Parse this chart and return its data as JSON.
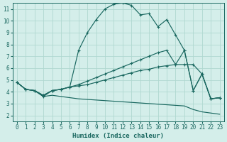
{
  "xlabel": "Humidex (Indice chaleur)",
  "bg_color": "#d4eeea",
  "grid_color": "#b0d8d0",
  "line_color": "#1a6860",
  "xlim": [
    -0.5,
    23.5
  ],
  "ylim": [
    1.5,
    11.5
  ],
  "xticks": [
    0,
    1,
    2,
    3,
    4,
    5,
    6,
    7,
    8,
    9,
    10,
    11,
    12,
    13,
    14,
    15,
    16,
    17,
    18,
    19,
    20,
    21,
    22,
    23
  ],
  "yticks": [
    2,
    3,
    4,
    5,
    6,
    7,
    8,
    9,
    10,
    11
  ],
  "lines": [
    {
      "x": [
        0,
        1,
        2,
        3,
        4,
        5,
        6,
        7,
        8,
        9,
        10,
        11,
        12,
        13,
        14,
        15,
        16,
        17,
        18,
        19,
        20,
        21,
        22,
        23
      ],
      "y": [
        4.8,
        4.2,
        4.1,
        3.6,
        4.1,
        4.2,
        4.4,
        7.5,
        9.0,
        10.1,
        11.0,
        11.4,
        11.5,
        11.3,
        10.5,
        10.6,
        9.5,
        10.1,
        8.8,
        7.5,
        4.1,
        5.5,
        3.4,
        3.5
      ],
      "has_markers": true
    },
    {
      "x": [
        0,
        1,
        2,
        3,
        4,
        5,
        6,
        7,
        8,
        9,
        10,
        11,
        12,
        13,
        14,
        15,
        16,
        17,
        18,
        19,
        20,
        21,
        22,
        23
      ],
      "y": [
        4.8,
        4.2,
        4.1,
        3.7,
        4.1,
        4.2,
        4.4,
        4.6,
        4.9,
        5.2,
        5.5,
        5.8,
        6.1,
        6.4,
        6.7,
        7.0,
        7.3,
        7.5,
        6.3,
        7.5,
        4.1,
        5.5,
        3.4,
        3.5
      ],
      "has_markers": true
    },
    {
      "x": [
        0,
        1,
        2,
        3,
        4,
        5,
        6,
        7,
        8,
        9,
        10,
        11,
        12,
        13,
        14,
        15,
        16,
        17,
        18,
        19,
        20,
        21,
        22,
        23
      ],
      "y": [
        4.8,
        4.2,
        4.1,
        3.7,
        4.1,
        4.2,
        4.4,
        4.5,
        4.6,
        4.8,
        5.0,
        5.2,
        5.4,
        5.6,
        5.8,
        5.9,
        6.1,
        6.2,
        6.3,
        6.3,
        6.3,
        5.5,
        3.4,
        3.5
      ],
      "has_markers": true
    },
    {
      "x": [
        0,
        1,
        2,
        3,
        4,
        5,
        6,
        7,
        8,
        9,
        10,
        11,
        12,
        13,
        14,
        15,
        16,
        17,
        18,
        19,
        20,
        21,
        22,
        23
      ],
      "y": [
        4.8,
        4.2,
        4.1,
        3.6,
        3.7,
        3.6,
        3.5,
        3.4,
        3.35,
        3.3,
        3.25,
        3.2,
        3.15,
        3.1,
        3.05,
        3.0,
        2.95,
        2.9,
        2.85,
        2.8,
        2.5,
        2.3,
        2.2,
        2.1
      ],
      "has_markers": false
    }
  ]
}
